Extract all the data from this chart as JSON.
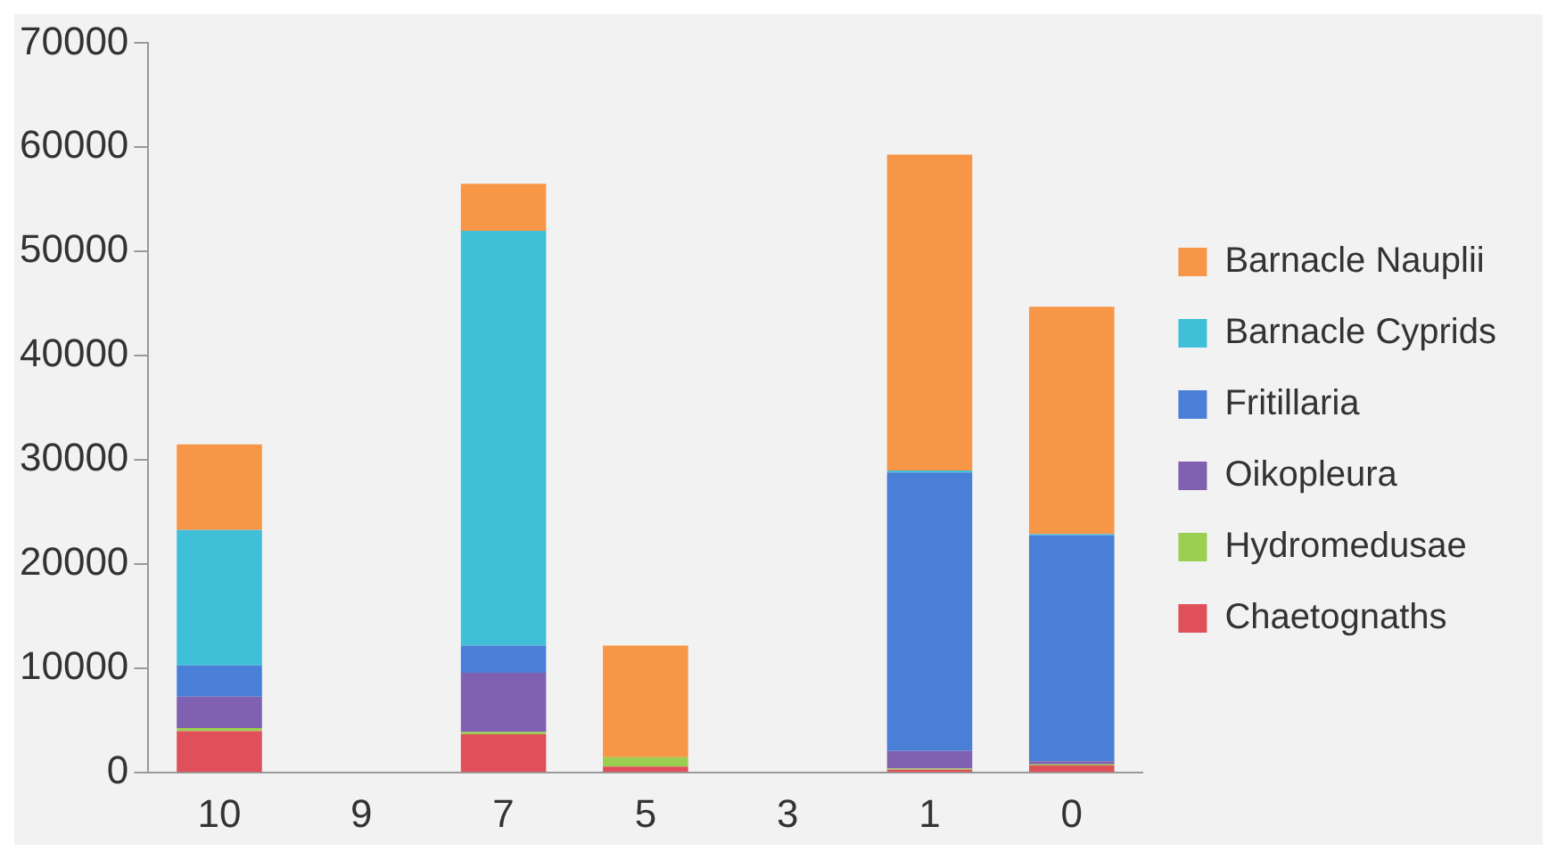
{
  "chart_data": {
    "type": "bar",
    "stacked": true,
    "categories": [
      "10",
      "9",
      "7",
      "5",
      "3",
      "1",
      "0"
    ],
    "series": [
      {
        "name": "Chaetognaths",
        "color": "#e0505a",
        "values": [
          4000,
          0,
          3700,
          600,
          0,
          300,
          700
        ]
      },
      {
        "name": "Hydromedusae",
        "color": "#9bcf50",
        "values": [
          300,
          0,
          200,
          900,
          0,
          100,
          100
        ]
      },
      {
        "name": "Oikopleura",
        "color": "#8060b0",
        "values": [
          3000,
          0,
          5700,
          0,
          0,
          1700,
          300
        ]
      },
      {
        "name": "Fritillaria",
        "color": "#4a7fd8",
        "values": [
          3000,
          0,
          2600,
          0,
          0,
          26700,
          21700
        ]
      },
      {
        "name": "Barnacle Cyprids",
        "color": "#3fbfd8",
        "values": [
          13000,
          0,
          39800,
          0,
          0,
          200,
          100
        ]
      },
      {
        "name": "Barnacle Nauplii",
        "color": "#f79646",
        "values": [
          8200,
          0,
          4500,
          10700,
          0,
          30300,
          21800
        ]
      }
    ],
    "ylim": [
      0,
      70000
    ],
    "yticks": [
      0,
      10000,
      20000,
      30000,
      40000,
      50000,
      60000,
      70000
    ],
    "grid": false,
    "legend": "right"
  }
}
